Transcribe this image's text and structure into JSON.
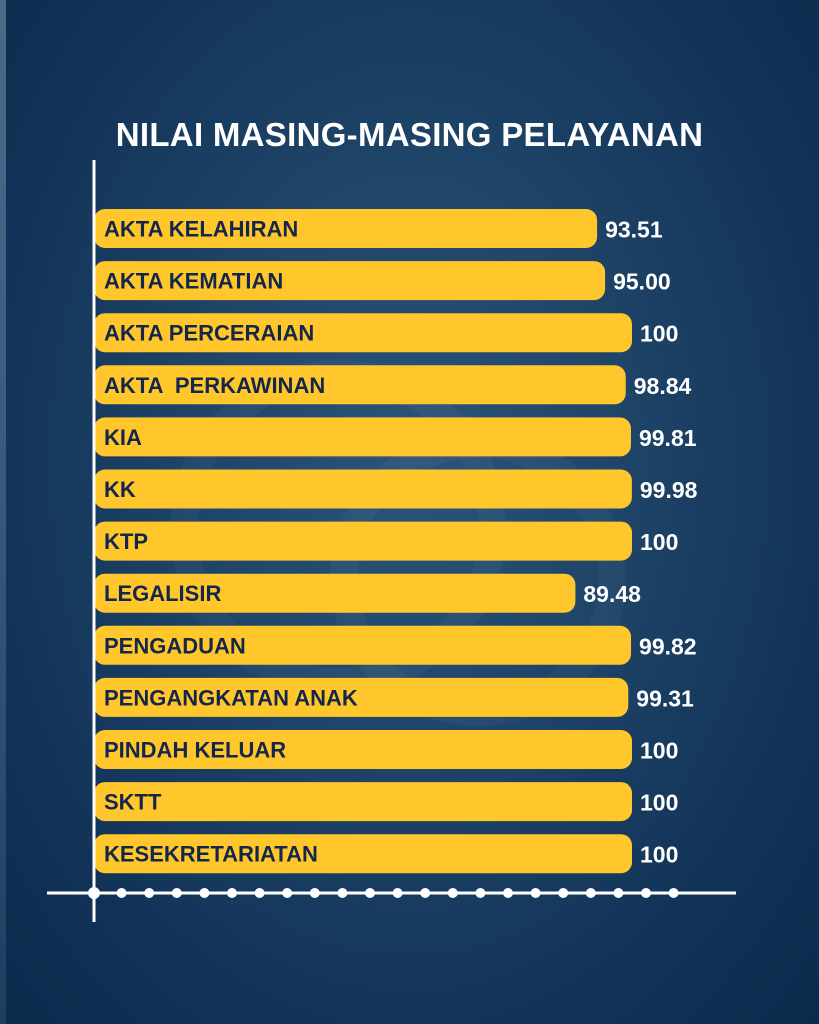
{
  "colors": {
    "bar": "#FFC72C",
    "bar_text": "#14274A",
    "value_text": "#FFFFFF",
    "axis": "#FFFFFF",
    "background": "#1E4468"
  },
  "chart_data": {
    "type": "bar",
    "orientation": "horizontal",
    "title": "NILAI MASING-MASING PELAYANAN",
    "categories": [
      "AKTA KELAHIRAN",
      "AKTA KEMATIAN",
      "AKTA PERCERAIAN",
      "AKTA  PERKAWINAN",
      "KIA",
      "KK",
      "KTP",
      "LEGALISIR",
      "PENGADUAN",
      "PENGANGKATAN ANAK",
      "PINDAH KELUAR",
      "SKTT",
      "KESEKRETARIATAN"
    ],
    "values": [
      93.51,
      95.0,
      100,
      98.84,
      99.81,
      99.98,
      100,
      89.48,
      99.82,
      99.31,
      100,
      100,
      100
    ],
    "value_labels": [
      "93.51",
      "95.00",
      "100",
      "98.84",
      "99.81",
      "99.98",
      "100",
      "89.48",
      "99.82",
      "99.31",
      "100",
      "100",
      "100"
    ],
    "xlim": [
      0,
      100
    ],
    "xlabel": "",
    "ylabel": "",
    "grid": false,
    "legend": "none"
  }
}
